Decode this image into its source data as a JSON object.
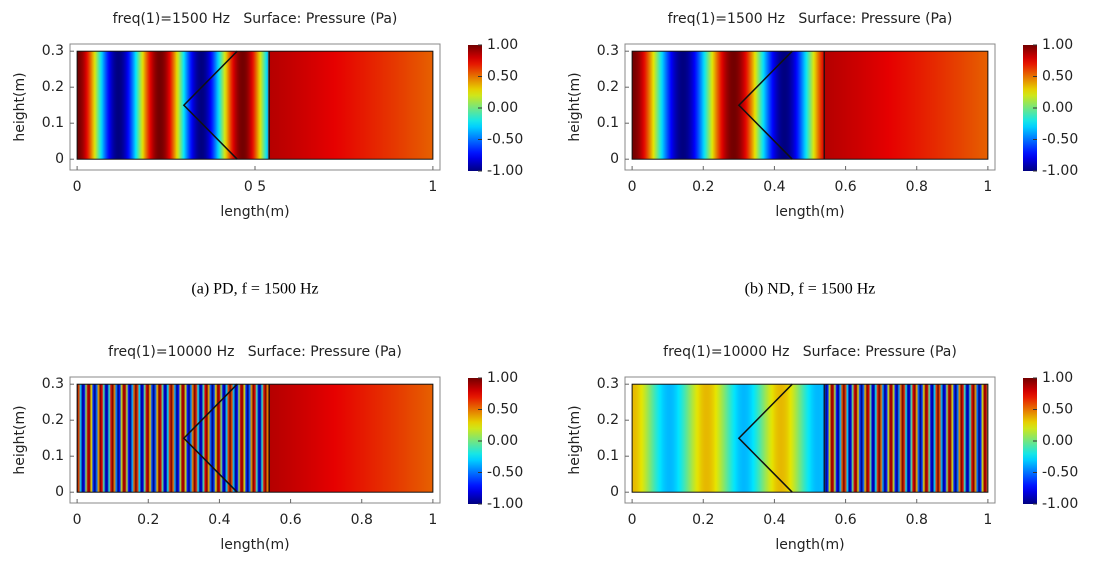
{
  "chart_data": [
    {
      "type": "heatmap",
      "title": "freq(1)=1500 Hz   Surface: Pressure (Pa)",
      "xlabel": "length(m)",
      "ylabel": "height(m)",
      "xlim": [
        -0.02,
        1.02
      ],
      "ylim": [
        -0.03,
        0.32
      ],
      "xticks": [
        0,
        {
          "value": 0.5,
          "label": "0 5"
        },
        1
      ],
      "yticks": [
        0,
        0.1,
        0.2,
        0.3
      ],
      "clim": [
        -1,
        1
      ],
      "cticks": [
        {
          "value": 1,
          "label": "1.00"
        },
        {
          "value": 0.5,
          "label": "0.50"
        },
        {
          "value": 0,
          "label": "0.00"
        },
        {
          "value": -0.5,
          "label": "-0.50"
        },
        {
          "value": -1,
          "label": "-1.00"
        }
      ],
      "caption": "(a) PD, f = 1500 Hz"
    },
    {
      "type": "heatmap",
      "title": "freq(1)=1500 Hz   Surface: Pressure (Pa)",
      "xlabel": "length(m)",
      "ylabel": "height(m)",
      "xlim": [
        -0.02,
        1.02
      ],
      "ylim": [
        -0.03,
        0.32
      ],
      "xticks": [
        0,
        0.2,
        0.4,
        0.6,
        0.8,
        1
      ],
      "yticks": [
        0,
        0.1,
        0.2,
        0.3
      ],
      "clim": [
        -1,
        1
      ],
      "cticks": [
        {
          "value": 1,
          "label": "1.00"
        },
        {
          "value": 0.5,
          "label": "0.50"
        },
        {
          "value": 0,
          "label": "0.00"
        },
        {
          "value": -0.5,
          "label": "-0.50"
        },
        {
          "value": -1,
          "label": "-1.00"
        }
      ],
      "caption": "(b) ND, f = 1500 Hz"
    },
    {
      "type": "heatmap",
      "title": "freq(1)=10000 Hz   Surface: Pressure (Pa)",
      "xlabel": "length(m)",
      "ylabel": "height(m)",
      "xlim": [
        -0.02,
        1.02
      ],
      "ylim": [
        -0.03,
        0.32
      ],
      "xticks": [
        0,
        0.2,
        0.4,
        0.6,
        0.8,
        1
      ],
      "yticks": [
        0,
        0.1,
        0.2,
        0.3
      ],
      "clim": [
        -1,
        1
      ],
      "cticks": [
        {
          "value": 1,
          "label": "1.00"
        },
        {
          "value": 0.5,
          "label": "0.50"
        },
        {
          "value": 0,
          "label": "0.00"
        },
        {
          "value": -0.5,
          "label": "-0.50"
        },
        {
          "value": -1,
          "label": "-1.00"
        }
      ]
    },
    {
      "type": "heatmap",
      "title": "freq(1)=10000 Hz   Surface: Pressure (Pa)",
      "xlabel": "length(m)",
      "ylabel": "height(m)",
      "xlim": [
        -0.02,
        1.02
      ],
      "ylim": [
        -0.03,
        0.32
      ],
      "xticks": [
        0,
        0.2,
        0.4,
        0.6,
        0.8,
        1
      ],
      "yticks": [
        0,
        0.1,
        0.2,
        0.3
      ],
      "clim": [
        -1,
        1
      ],
      "cticks": [
        {
          "value": 1,
          "label": "1.00"
        },
        {
          "value": 0.5,
          "label": "0.50"
        },
        {
          "value": 0,
          "label": "0.00"
        },
        {
          "value": -0.5,
          "label": "-0.50"
        },
        {
          "value": -1,
          "label": "-1.00"
        }
      ]
    }
  ]
}
